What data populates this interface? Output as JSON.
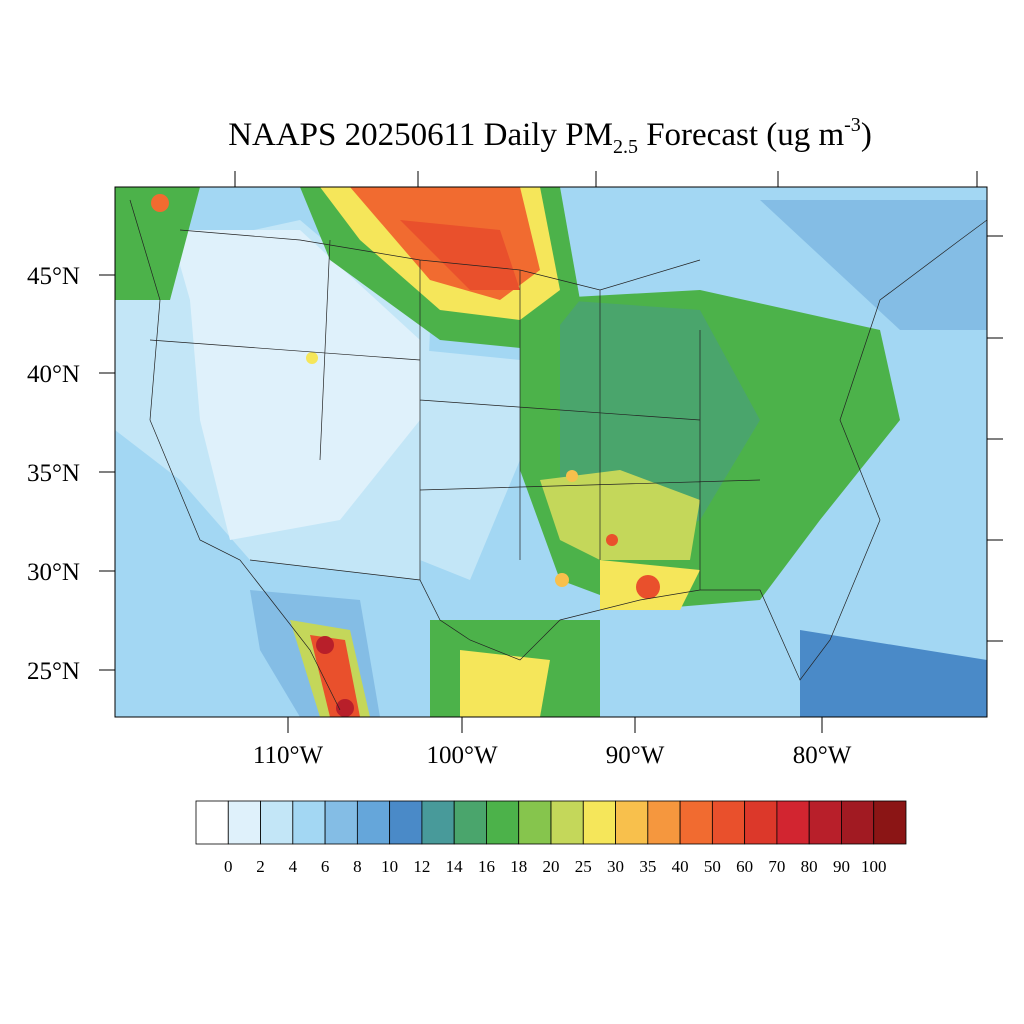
{
  "title": {
    "main": "NAAPS 20250611 Daily PM",
    "sub": "2.5",
    "rest": " Forecast (ug m",
    "sup": "-3",
    "end": ")"
  },
  "map": {
    "lat_labels": [
      "45°N",
      "40°N",
      "35°N",
      "30°N",
      "25°N"
    ],
    "lon_labels": [
      "110°W",
      "100°W",
      "90°W",
      "80°W"
    ]
  },
  "colorbar": {
    "colors": [
      "#ffffff",
      "#dff1fb",
      "#c3e6f7",
      "#a3d7f3",
      "#84bde5",
      "#65a6da",
      "#4a8ac8",
      "#489a9a",
      "#4aa56c",
      "#4cb24a",
      "#86c54d",
      "#c4d75a",
      "#f5e65a",
      "#f8c04c",
      "#f5973e",
      "#f16b30",
      "#e9502c",
      "#dc382a",
      "#d22530",
      "#b81f2a",
      "#a11a22",
      "#8b1515"
    ],
    "labels": [
      "0",
      "2",
      "4",
      "6",
      "8",
      "10",
      "12",
      "14",
      "16",
      "18",
      "20",
      "25",
      "30",
      "35",
      "40",
      "50",
      "60",
      "70",
      "80",
      "90",
      "100"
    ]
  }
}
